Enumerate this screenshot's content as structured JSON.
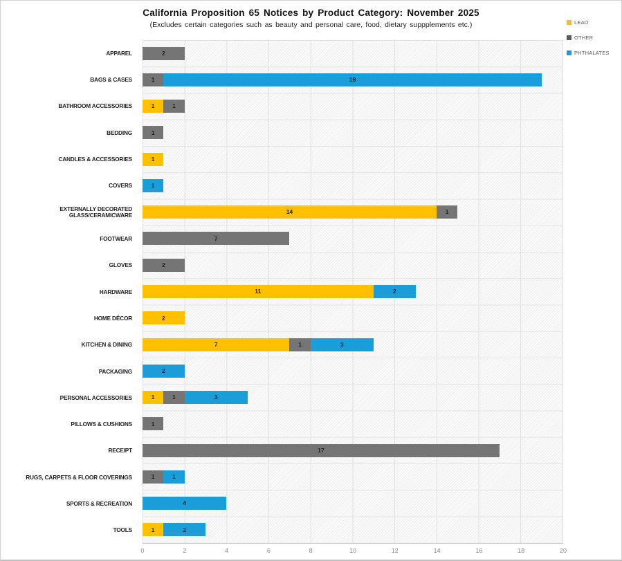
{
  "title": "California Proposition 65 Notices by Product Category: November 2025",
  "subtitle": "(Excludes certain categories such as beauty and personal care, food, dietary suppplements etc.)",
  "legend": [
    {
      "label": "LEAD",
      "color": "#FFC000"
    },
    {
      "label": "OTHER",
      "color": "#5a5a5a"
    },
    {
      "label": "PHTHALATES",
      "color": "#1B9DD9"
    }
  ],
  "colors": {
    "lead": "#FFC000",
    "other": "#757575",
    "phthalates": "#1B9DD9"
  },
  "chart_data": {
    "type": "bar",
    "orientation": "horizontal",
    "stacked": true,
    "title": "California Proposition 65 Notices by Product Category: November 2025",
    "subtitle": "(Excludes certain categories such as beauty and personal care, food, dietary suppplements etc.)",
    "xlabel": "",
    "ylabel": "",
    "xlim": [
      0,
      20
    ],
    "xticks": [
      0,
      2,
      4,
      6,
      8,
      10,
      12,
      14,
      16,
      18,
      20
    ],
    "grid": true,
    "legend_position": "top-right",
    "value_labels": "inside-center",
    "categories": [
      "APPAREL",
      "BAGS & CASES",
      "BATHROOM ACCESSORIES",
      "BEDDING",
      "CANDLES & ACCESSORIES",
      "COVERS",
      "EXTERNALLY DECORATED GLASS/CERAMICWARE",
      "FOOTWEAR",
      "GLOVES",
      "HARDWARE",
      "HOME DÉCOR",
      "KITCHEN & DINING",
      "PACKAGING",
      "PERSONAL ACCESSORIES",
      "PILLOWS & CUSHIONS",
      "RECEIPT",
      "RUGS, CARPETS & FLOOR COVERINGS",
      "SPORTS & RECREATION",
      "TOOLS"
    ],
    "series": [
      {
        "name": "LEAD",
        "color": "#FFC000",
        "values": [
          0,
          0,
          1,
          0,
          1,
          0,
          14,
          0,
          0,
          11,
          2,
          7,
          0,
          1,
          0,
          0,
          0,
          0,
          1
        ]
      },
      {
        "name": "OTHER",
        "color": "#757575",
        "values": [
          2,
          1,
          1,
          1,
          0,
          0,
          1,
          7,
          2,
          0,
          0,
          1,
          0,
          1,
          1,
          17,
          1,
          0,
          0
        ]
      },
      {
        "name": "PHTHALATES",
        "color": "#1B9DD9",
        "values": [
          0,
          18,
          0,
          0,
          0,
          1,
          0,
          0,
          0,
          2,
          0,
          3,
          2,
          3,
          0,
          0,
          1,
          4,
          2
        ]
      }
    ]
  }
}
